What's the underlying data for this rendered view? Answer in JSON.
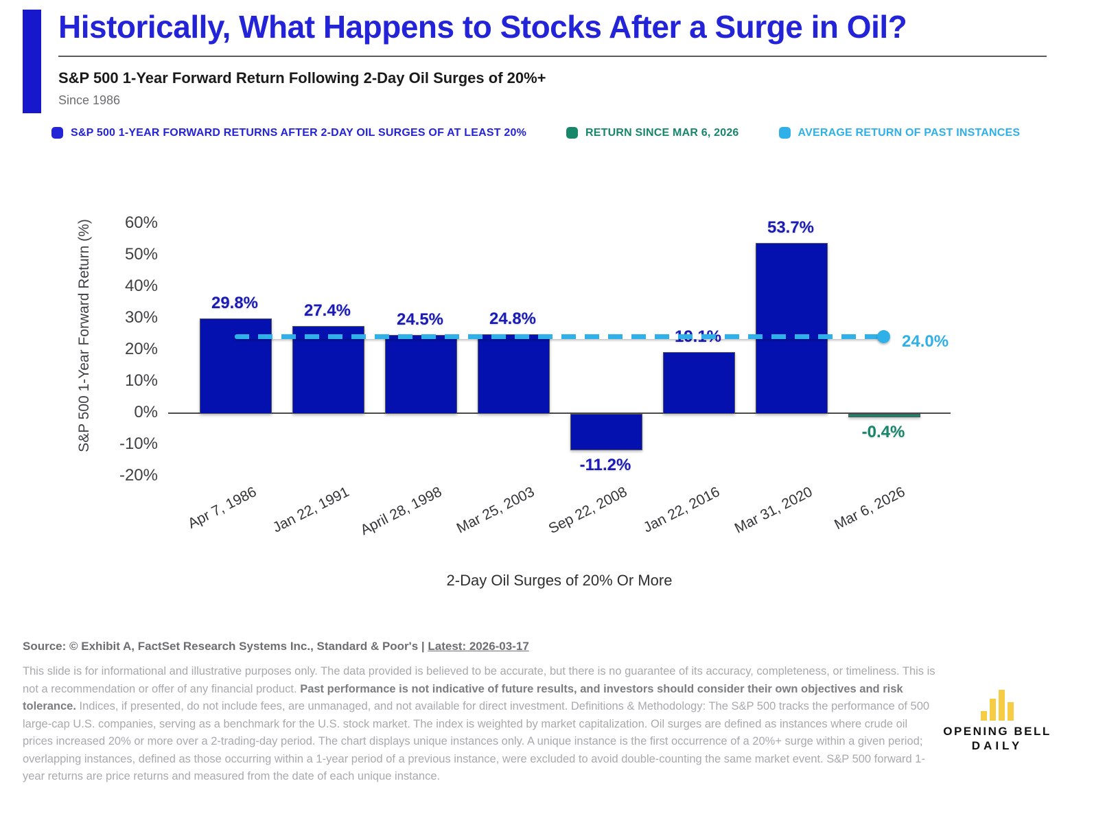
{
  "header": {
    "title": "Historically, What Happens to Stocks After a Surge in Oil?",
    "subtitle": "S&P 500 1-Year Forward Return Following 2-Day Oil Surges of 20%+",
    "since": "Since 1986"
  },
  "legend": [
    {
      "label": "S&P 500 1-YEAR FORWARD RETURNS AFTER 2-DAY OIL SURGES OF AT LEAST 20%",
      "color": "#2323d7"
    },
    {
      "label": "RETURN SINCE MAR 6, 2026",
      "color": "#17866b"
    },
    {
      "label": "AVERAGE RETURN OF PAST INSTANCES",
      "color": "#2fb0e8"
    }
  ],
  "chart_data": {
    "type": "bar",
    "categories": [
      "Apr 7, 1986",
      "Jan 22, 1991",
      "April 28, 1998",
      "Mar 25, 2003",
      "Sep 22, 2008",
      "Jan 22, 2016",
      "Mar 31, 2020",
      "Mar 6, 2026"
    ],
    "values": [
      29.8,
      27.4,
      24.5,
      24.8,
      -11.2,
      19.1,
      53.7,
      -0.4
    ],
    "bar_value_labels": [
      "29.8%",
      "27.4%",
      "24.5%",
      "24.8%",
      "-11.2%",
      "19.1%",
      "53.7%",
      "-0.4%"
    ],
    "bar_series_index": [
      0,
      0,
      0,
      0,
      0,
      0,
      0,
      1
    ],
    "series_meta": [
      {
        "name": "S&P 500 1-year forward returns after 2-day oil surges of at least 20%",
        "bar_color": "#0511ae",
        "label_color": "#1a1ab9"
      },
      {
        "name": "Return since Mar 6, 2026",
        "bar_color": "#17866b",
        "label_color": "#17866b"
      }
    ],
    "average_line": {
      "value": 24.0,
      "label": "24.0%",
      "color": "#2fb0e8"
    },
    "xlabel": "2-Day Oil Surges of 20% Or More",
    "ylabel": "S&P 500 1-Year Forward Return (%)",
    "ylim": [
      -20,
      60
    ],
    "ytick_labels": [
      "60%",
      "50%",
      "40%",
      "30%",
      "20%",
      "10%",
      "0%",
      "-10%",
      "-20%"
    ],
    "grid": false,
    "legend_position": "top"
  },
  "footer": {
    "source_prefix": "Source: © Exhibit A, FactSet Research Systems Inc., Standard & Poor's | ",
    "source_latest": "Latest: 2026-03-17",
    "disclaimer_part1": "This slide is for informational and illustrative purposes only. The data provided is believed to be accurate, but there is no guarantee of its accuracy, completeness, or timeliness. This is not a recommendation or offer of any financial product. ",
    "disclaimer_bold": "Past performance is not indicative of future results, and investors should consider their own objectives and risk tolerance.",
    "disclaimer_part2": " Indices, if presented, do not include fees, are unmanaged, and not available for direct investment. Definitions & Methodology: The S&P 500 tracks the performance of 500 large-cap U.S. companies, serving as a benchmark for the U.S. stock market. The index is weighted by market capitalization. Oil surges are defined as instances where crude oil prices increased 20% or more over a 2-trading-day period. The chart displays unique instances only. A unique instance is the first occurrence of a 20%+ surge within a given period; overlapping instances, defined as those occurring within a 1-year period of a previous instance, were excluded to avoid double-counting the same market event. S&P 500 forward 1-year returns are price returns and measured from the date of each unique instance.",
    "logo_line1": "OPENING BELL",
    "logo_line2": "DAILY"
  }
}
